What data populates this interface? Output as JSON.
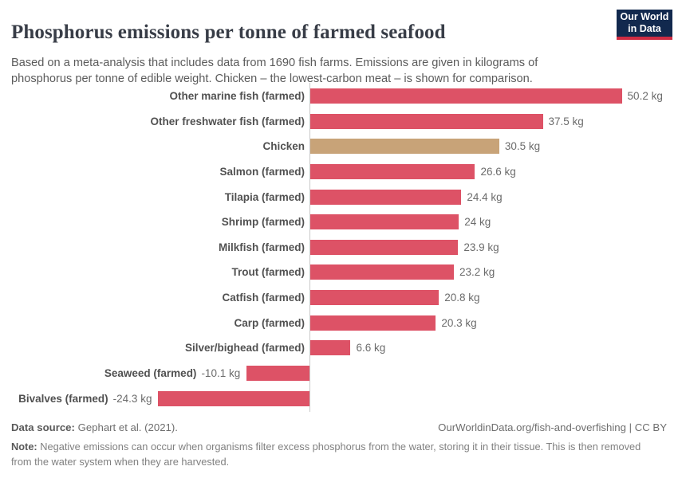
{
  "header": {
    "title": "Phosphorus emissions per tonne of farmed seafood",
    "subtitle": "Based on a meta-analysis that includes data from 1690 fish farms. Emissions are given in kilograms of phosphorus per tonne of edible weight. Chicken – the lowest-carbon meat – is shown for comparison.",
    "logo": {
      "line1": "Our World",
      "line2": "in Data",
      "bg_color": "#12294e",
      "accent_color": "#cf2c43"
    }
  },
  "chart_data": {
    "type": "bar",
    "orientation": "horizontal",
    "title": "Phosphorus emissions per tonne of farmed seafood",
    "unit": "kg",
    "xlim": [
      -24.3,
      50.2
    ],
    "grid": false,
    "categories": [
      "Other marine fish (farmed)",
      "Other freshwater fish (farmed)",
      "Chicken",
      "Salmon (farmed)",
      "Tilapia (farmed)",
      "Shrimp (farmed)",
      "Milkfish (farmed)",
      "Trout (farmed)",
      "Catfish (farmed)",
      "Carp (farmed)",
      "Silver/bighead (farmed)",
      "Seaweed (farmed)",
      "Bivalves (farmed)"
    ],
    "values": [
      50.2,
      37.5,
      30.5,
      26.6,
      24.4,
      24,
      23.9,
      23.2,
      20.8,
      20.3,
      6.6,
      -10.1,
      -24.3
    ],
    "value_labels": [
      "50.2 kg",
      "37.5 kg",
      "30.5 kg",
      "26.6 kg",
      "24.4 kg",
      "24 kg",
      "23.9 kg",
      "23.2 kg",
      "20.8 kg",
      "20.3 kg",
      "6.6 kg",
      "-10.1 kg",
      "-24.3 kg"
    ],
    "bar_color": "#dd5266",
    "highlight_color": "#c8a378",
    "highlight_category": "Chicken"
  },
  "footer": {
    "datasource_label": "Data source:",
    "datasource_value": "Gephart et al. (2021).",
    "link": "OurWorldinData.org/fish-and-overfishing | CC BY",
    "note_label": "Note:",
    "note_text": "Negative emissions can occur when organisms filter excess phosphorus from the water, storing it in their tissue. This is then removed from the water system when they are harvested."
  }
}
